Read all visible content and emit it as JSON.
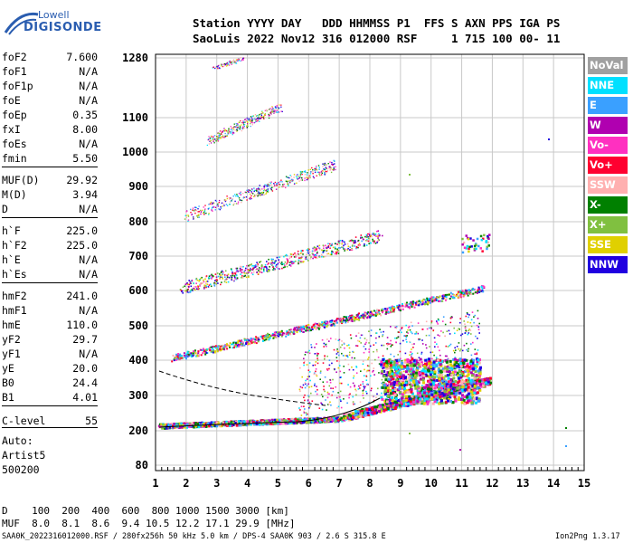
{
  "logo": {
    "line1": "Lowell",
    "line2": "DIGISONDE"
  },
  "header": {
    "labels": "Station YYYY DAY   DDD HHMMSS P1  FFS S AXN PPS IGA PS",
    "values": "SaoLuis 2022 Nov12 316 012000 RSF     1 715 100 00- 11"
  },
  "params": [
    {
      "name": "foF2",
      "value": "7.600"
    },
    {
      "name": "foF1",
      "value": "N/A"
    },
    {
      "name": "foF1p",
      "value": "N/A"
    },
    {
      "name": "foE",
      "value": "N/A"
    },
    {
      "name": "foEp",
      "value": "0.35"
    },
    {
      "name": "fxI",
      "value": "8.00"
    },
    {
      "name": "foEs",
      "value": "N/A"
    },
    {
      "name": "fmin",
      "value": "5.50"
    },
    {
      "name": "MUF(D)",
      "value": "29.92"
    },
    {
      "name": "M(D)",
      "value": "3.94"
    },
    {
      "name": "D",
      "value": "N/A"
    },
    {
      "name": "h`F",
      "value": "225.0"
    },
    {
      "name": "h`F2",
      "value": "225.0"
    },
    {
      "name": "h`E",
      "value": "N/A"
    },
    {
      "name": "h`Es",
      "value": "N/A"
    },
    {
      "name": "hmF2",
      "value": "241.0"
    },
    {
      "name": "hmF1",
      "value": "N/A"
    },
    {
      "name": "hmE",
      "value": "110.0"
    },
    {
      "name": "yF2",
      "value": "29.7"
    },
    {
      "name": "yF1",
      "value": "N/A"
    },
    {
      "name": "yE",
      "value": "20.0"
    },
    {
      "name": "B0",
      "value": "24.4"
    },
    {
      "name": "B1",
      "value": "4.01"
    },
    {
      "name": "C-level",
      "value": "55"
    }
  ],
  "autoscaling": {
    "line1": "Auto:",
    "line2": "Artist5",
    "line3": "500200"
  },
  "axes": {
    "x_ticks": [
      "1",
      "2",
      "3",
      "4",
      "5",
      "6",
      "7",
      "8",
      "9",
      "10",
      "11",
      "12",
      "13",
      "14",
      "15"
    ],
    "y_ticks": [
      "80",
      "200",
      "300",
      "400",
      "500",
      "600",
      "700",
      "800",
      "900",
      "1000",
      "1100",
      "1280"
    ]
  },
  "legend": [
    {
      "label": "NoVal",
      "color": "#a0a0a0"
    },
    {
      "label": "NNE",
      "color": "#00e0ff"
    },
    {
      "label": "E",
      "color": "#3aa0ff"
    },
    {
      "label": "W",
      "color": "#b000b0"
    },
    {
      "label": "Vo-",
      "color": "#ff30c0"
    },
    {
      "label": "Vo+",
      "color": "#ff0030"
    },
    {
      "label": "SSW",
      "color": "#ffb0b0"
    },
    {
      "label": "X-",
      "color": "#008000"
    },
    {
      "label": "X+",
      "color": "#80c040"
    },
    {
      "label": "SSE",
      "color": "#e0d000"
    },
    {
      "label": "NNW",
      "color": "#2000e0"
    }
  ],
  "footer": {
    "d_row": "D    100  200  400  600  800 1000 1500 3000 [km]",
    "muf_row": "MUF  8.0  8.1  8.6  9.4 10.5 12.2 17.1 29.9 [MHz]",
    "file_info": "SAA0K_2022316012000.RSF / 280fx256h 50 kHz 5.0 km / DPS-4 SAA0K 903 / 2.6 S 315.8 E",
    "version": "Ion2Png 1.3.17"
  }
}
